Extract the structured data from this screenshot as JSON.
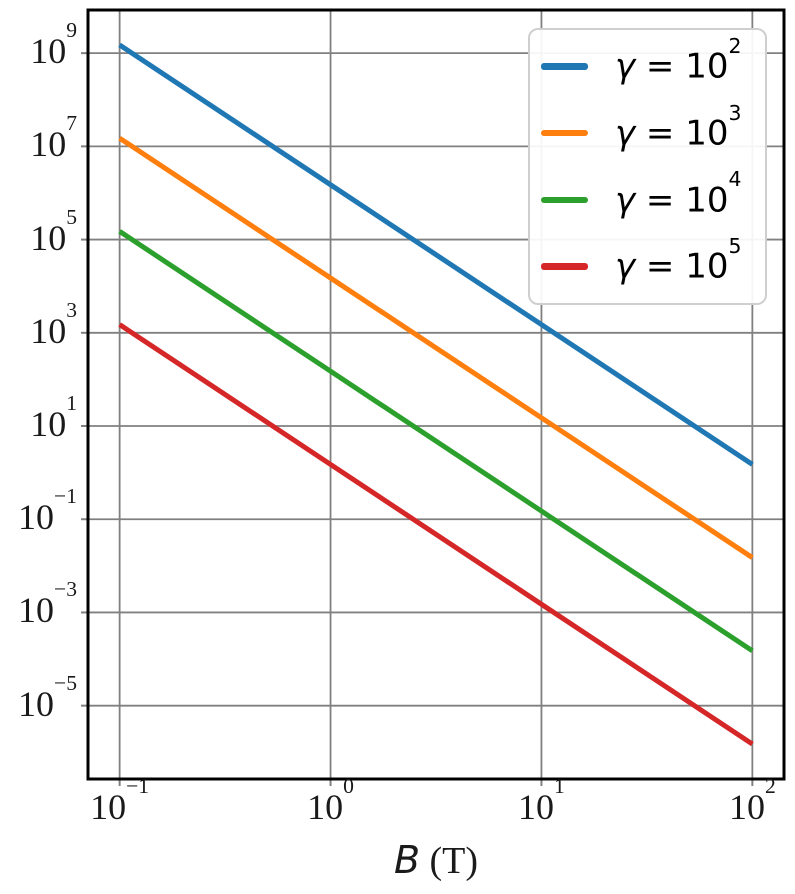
{
  "figure": {
    "background": "#ffffff",
    "title": ""
  },
  "chart_data": {
    "type": "line",
    "x_scale": "log",
    "y_scale": "log",
    "title": "",
    "xlabel": "B (T)",
    "ylabel": "",
    "grid": true,
    "grid_color": "#808080",
    "spine_color": "#000000",
    "tick_color": "#808080",
    "xlim": [
      0.0708,
      141.25
    ],
    "ylim": [
      2.67e-07,
      8430000000.0
    ],
    "x_ticks": [
      {
        "value": 0.1,
        "label": "10^-1"
      },
      {
        "value": 1,
        "label": "10^0"
      },
      {
        "value": 10,
        "label": "10^1"
      },
      {
        "value": 100,
        "label": "10^2"
      }
    ],
    "y_ticks": [
      {
        "value": 1000000000.0,
        "label": "10^9"
      },
      {
        "value": 10000000.0,
        "label": "10^7"
      },
      {
        "value": 100000.0,
        "label": "10^5"
      },
      {
        "value": 1000.0,
        "label": "10^3"
      },
      {
        "value": 10.0,
        "label": "10^1"
      },
      {
        "value": 0.1,
        "label": "10^-1"
      },
      {
        "value": 0.001,
        "label": "10^-3"
      },
      {
        "value": 1e-05,
        "label": "10^-5"
      }
    ],
    "legend": {
      "position": "upper right"
    },
    "series": [
      {
        "name": "γ = 10^2",
        "color": "#1f77b4",
        "x": [
          0.1,
          1,
          10,
          100
        ],
        "y": [
          1500000000.0,
          1500000.0,
          1500.0,
          1.5
        ]
      },
      {
        "name": "γ = 10^3",
        "color": "#ff7f0e",
        "x": [
          0.1,
          1,
          10,
          100
        ],
        "y": [
          15000000.0,
          15000.0,
          15.0,
          0.015
        ]
      },
      {
        "name": "γ = 10^4",
        "color": "#2ca02c",
        "x": [
          0.1,
          1,
          10,
          100
        ],
        "y": [
          150000.0,
          150.0,
          0.15,
          0.00015
        ]
      },
      {
        "name": "γ = 10^5",
        "color": "#d62728",
        "x": [
          0.1,
          1,
          10,
          100
        ],
        "y": [
          1500.0,
          1.5,
          0.0015,
          1.5e-06
        ]
      }
    ]
  }
}
